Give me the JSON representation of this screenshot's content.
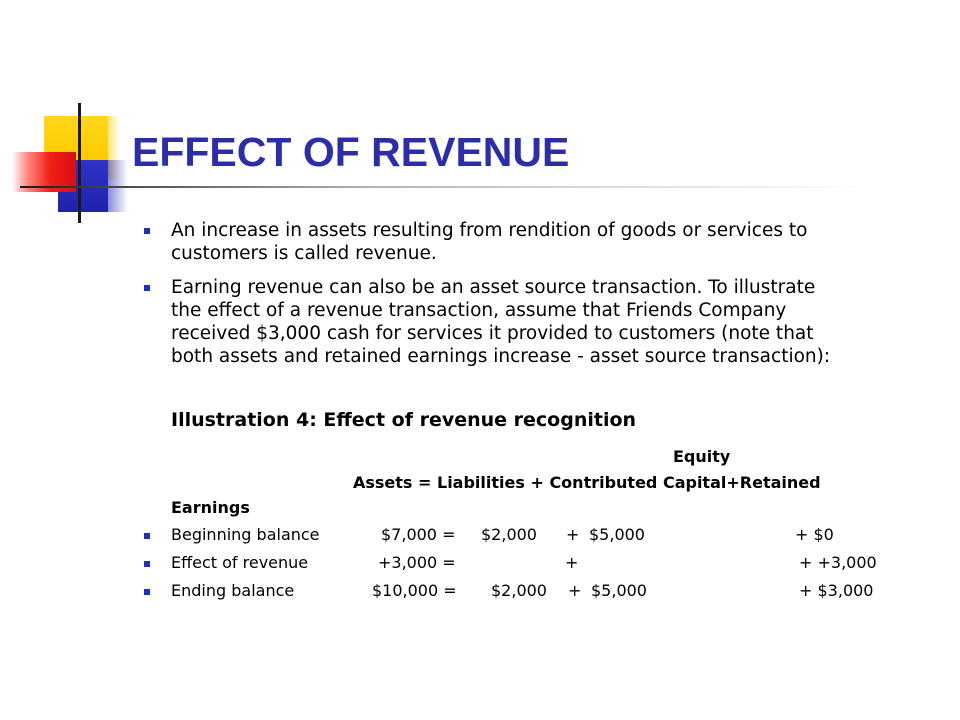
{
  "slide": {
    "title": "EFFECT OF REVENUE",
    "bullets": [
      {
        "lines": [
          "An increase in assets resulting from rendition of goods or services to",
          "customers is called revenue."
        ]
      },
      {
        "lines": [
          "Earning revenue can also be an asset source transaction. To illustrate",
          "the effect of a revenue transaction, assume that Friends Company",
          "received $3,000 cash for services it provided to customers (note that",
          "both assets and retained earnings increase - asset source transaction):"
        ]
      }
    ],
    "illustration": {
      "heading": "Illustration 4: Effect of revenue recognition",
      "equity_label": "Equity",
      "equation": {
        "assets": "Assets",
        "eq": " = ",
        "liabilities": "Liabilities",
        "plus1": " + ",
        "contributed": "Contributed Capital",
        "plus2": "+",
        "retained": "Retained"
      },
      "earnings_label": "Earnings",
      "rows": [
        {
          "label": "Beginning balance",
          "assets": "$7,000 =",
          "liabilities": "$2,000",
          "plus1": "+",
          "contributed": "$5,000",
          "retained": "+ $0"
        },
        {
          "label": "Effect of revenue",
          "assets": "+3,000 =",
          "liabilities": "",
          "plus1": "+",
          "contributed": "",
          "retained": "+  +3,000"
        },
        {
          "label": "Ending balance",
          "assets": "$10,000 =",
          "liabilities": "$2,000",
          "plus1": "+",
          "contributed": "$5,000",
          "retained": "+   $3,000"
        }
      ]
    },
    "colors": {
      "title": "#2b2ea8",
      "bullet": "#1f2fb8",
      "accent_yellow": "#ffcc00",
      "accent_blue": "#1f22aa",
      "accent_red": "#e0140f"
    }
  }
}
